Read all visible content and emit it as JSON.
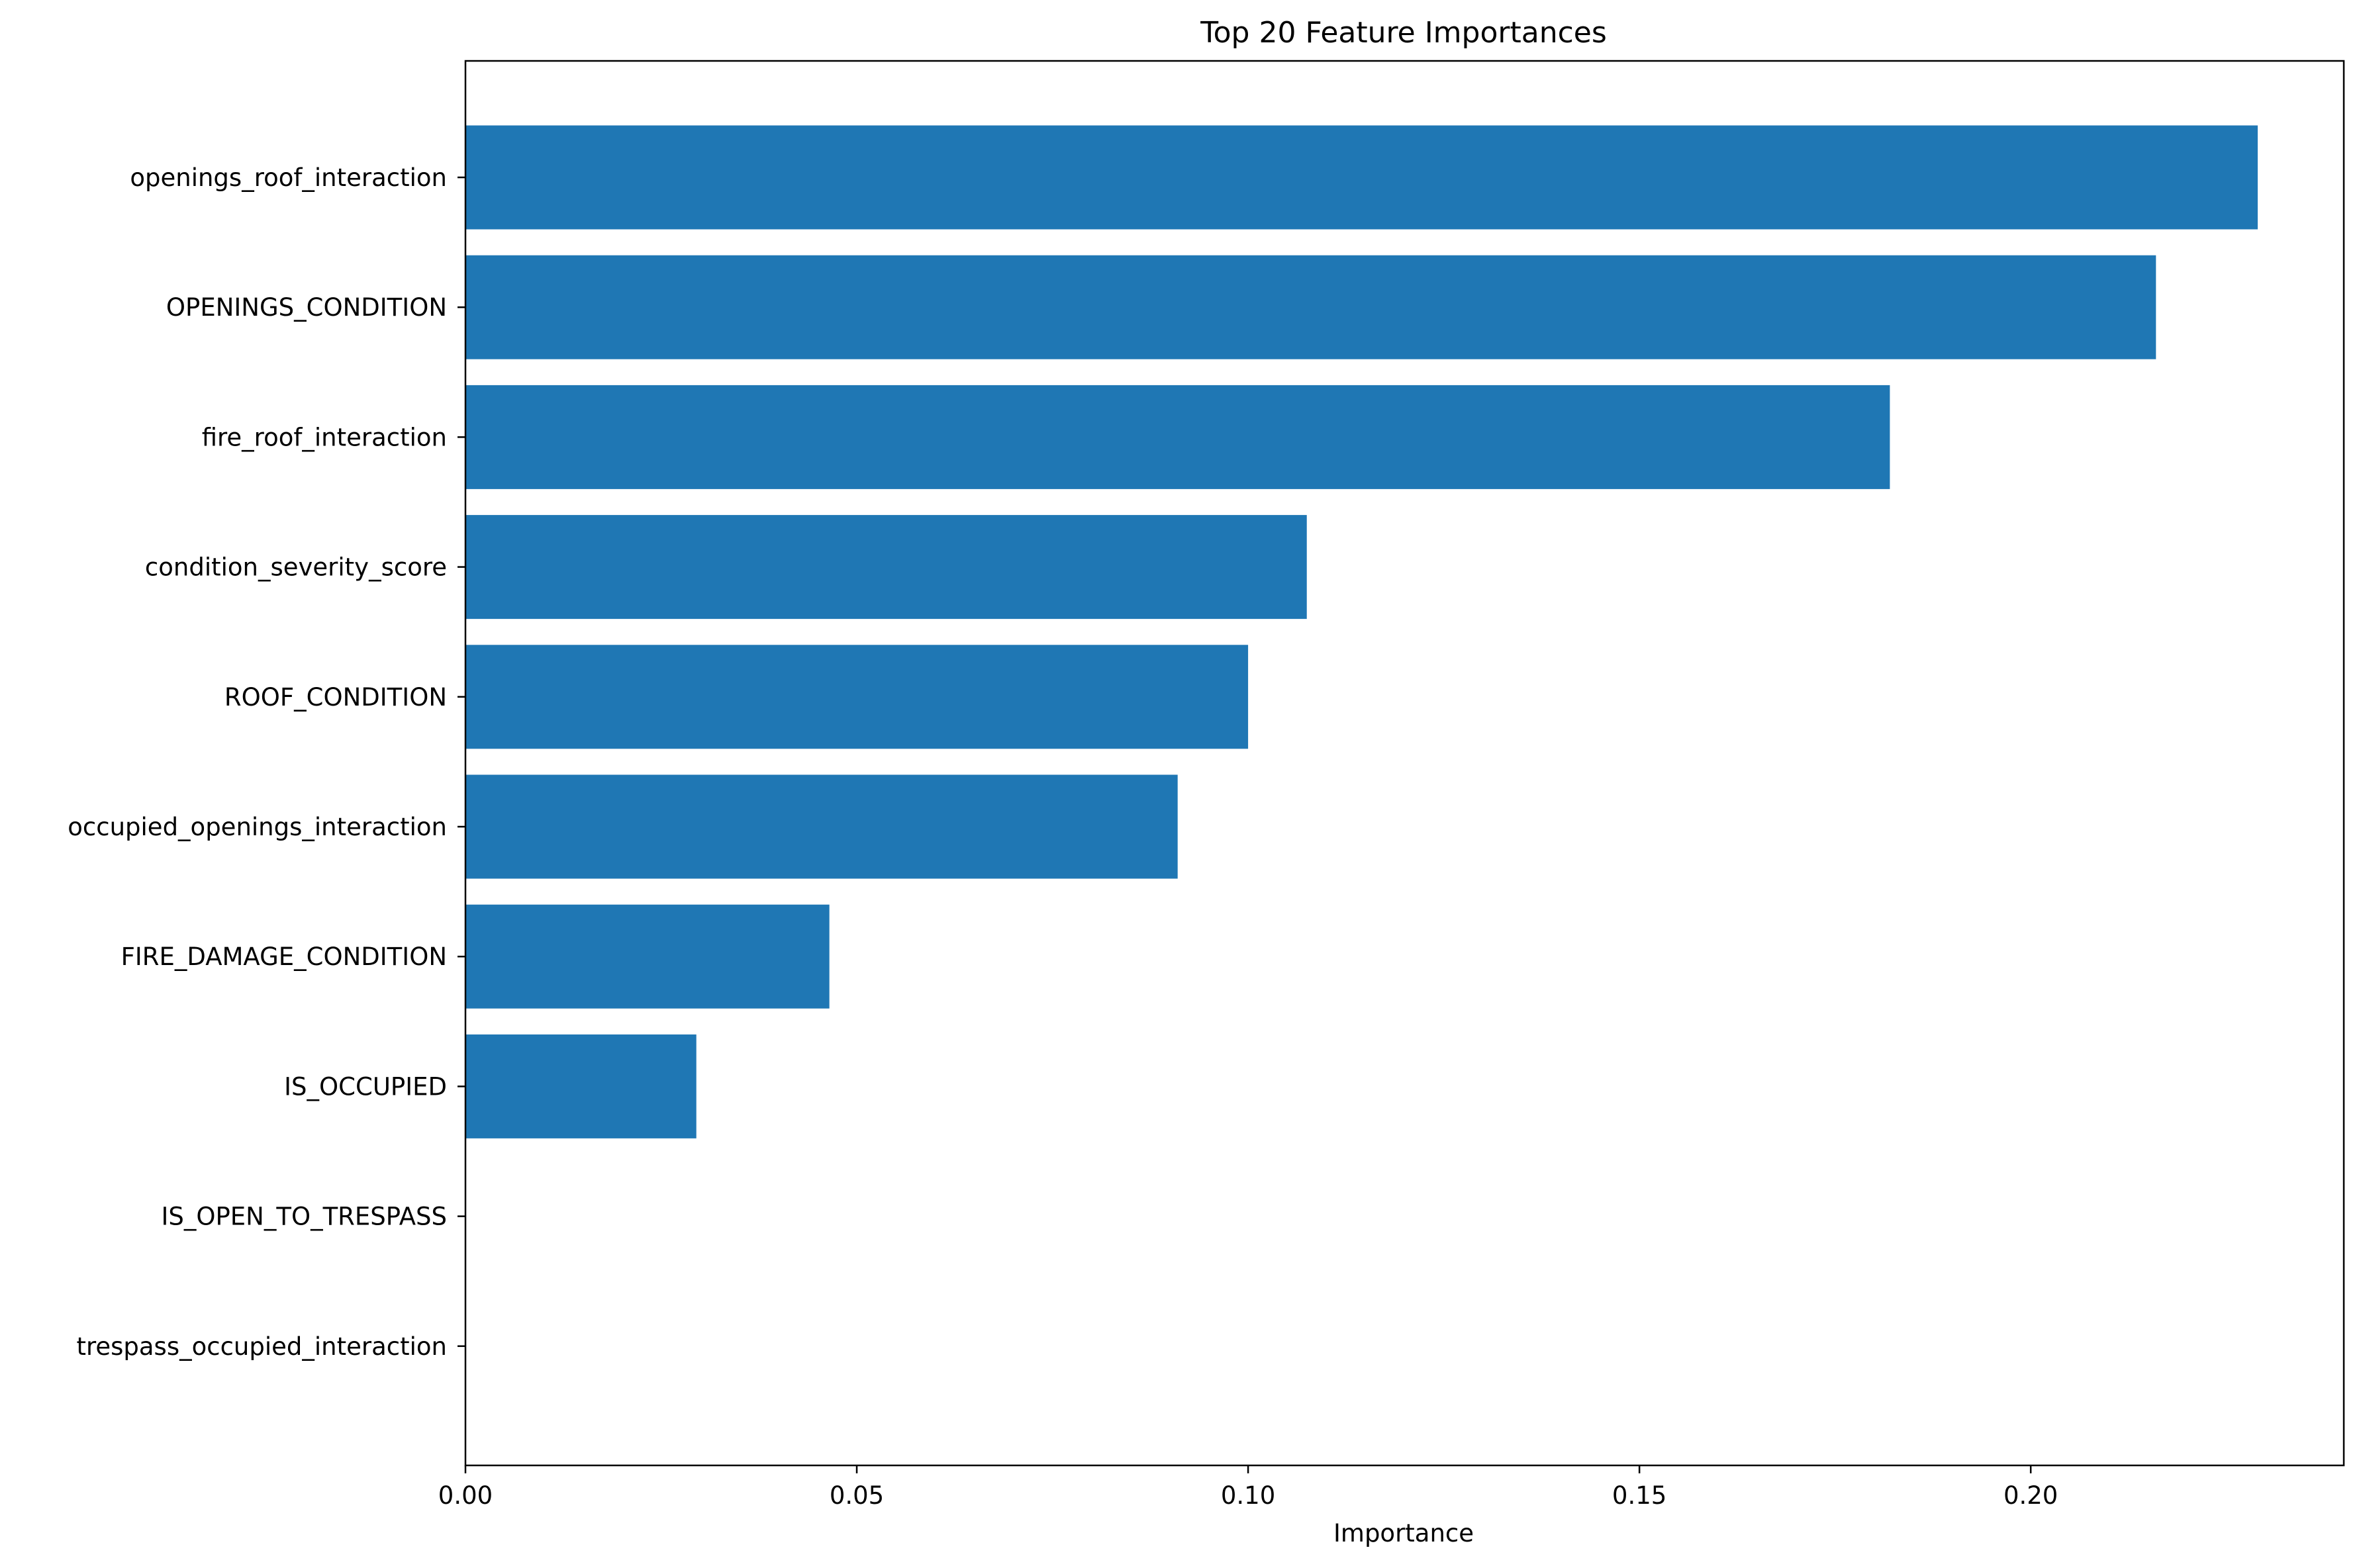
{
  "chart_data": {
    "type": "bar",
    "orientation": "horizontal",
    "title": "Top 20 Feature Importances",
    "xlabel": "Importance",
    "ylabel": "",
    "xlim": [
      0,
      0.24
    ],
    "xticks": [
      "0.00",
      "0.05",
      "0.10",
      "0.15",
      "0.20"
    ],
    "xtick_values": [
      0.0,
      0.05,
      0.1,
      0.15,
      0.2
    ],
    "grid": false,
    "legend": false,
    "bar_color": "#1f77b4",
    "categories": [
      "openings_roof_interaction",
      "OPENINGS_CONDITION",
      "fire_roof_interaction",
      "condition_severity_score",
      "ROOF_CONDITION",
      "occupied_openings_interaction",
      "FIRE_DAMAGE_CONDITION",
      "IS_OCCUPIED",
      "IS_OPEN_TO_TRESPASS",
      "trespass_occupied_interaction"
    ],
    "values": [
      0.229,
      0.216,
      0.182,
      0.1075,
      0.1,
      0.091,
      0.0465,
      0.0295,
      0.0,
      0.0
    ]
  }
}
